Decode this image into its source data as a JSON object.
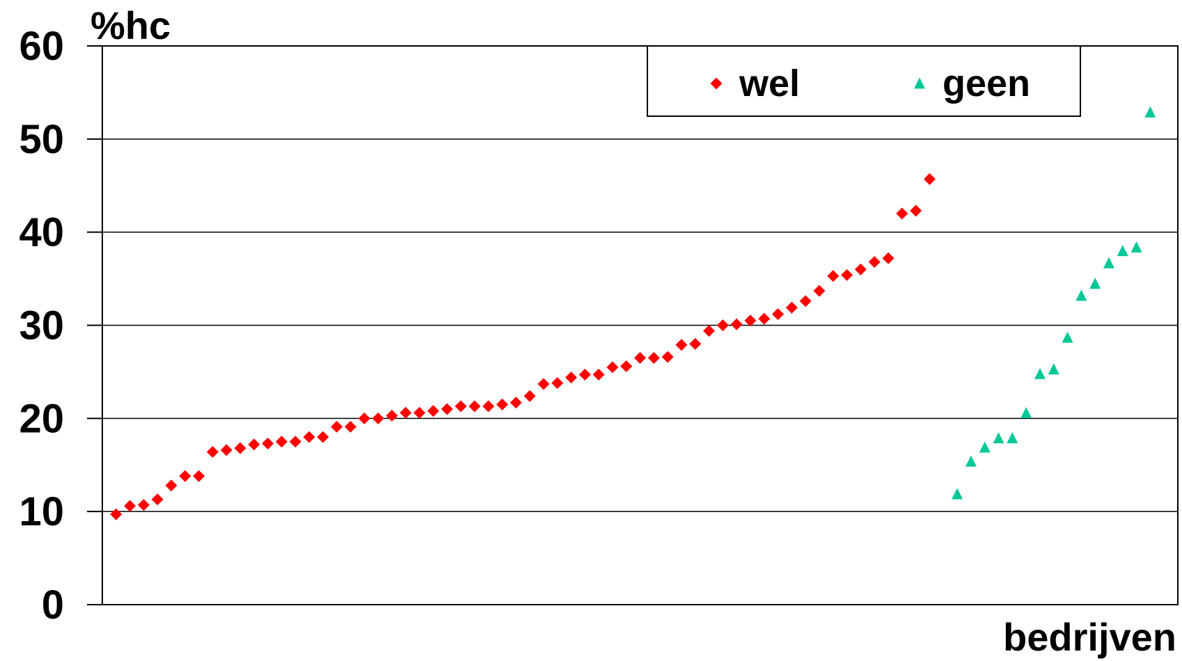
{
  "chart_data": {
    "type": "scatter",
    "title": "",
    "ylabel": "%hc",
    "xlabel": "bedrijven",
    "ylim": [
      0,
      60
    ],
    "yticks": [
      0,
      10,
      20,
      30,
      40,
      50,
      60
    ],
    "grid": "horizontal",
    "legend_position": "top-right",
    "series": [
      {
        "name": "wel",
        "marker": "diamond",
        "color": "#ff0000",
        "x": [
          1,
          2,
          3,
          4,
          5,
          6,
          7,
          8,
          9,
          10,
          11,
          12,
          13,
          14,
          15,
          16,
          17,
          18,
          19,
          20,
          21,
          22,
          23,
          24,
          25,
          26,
          27,
          28,
          29,
          30,
          31,
          32,
          33,
          34,
          35,
          36,
          37,
          38,
          39,
          40,
          41,
          42,
          43,
          44,
          45,
          46,
          47,
          48,
          49,
          50,
          51,
          52,
          53,
          54,
          55,
          56,
          57,
          58,
          59,
          60,
          61
        ],
        "y": [
          9.7,
          10.6,
          10.7,
          11.3,
          12.8,
          13.8,
          13.8,
          16.4,
          16.6,
          16.8,
          17.2,
          17.3,
          17.5,
          17.5,
          18.0,
          18.0,
          19.1,
          19.1,
          20.0,
          20.0,
          20.3,
          20.6,
          20.6,
          20.8,
          21.0,
          21.3,
          21.3,
          21.3,
          21.5,
          21.7,
          22.4,
          23.7,
          23.8,
          24.4,
          24.7,
          24.7,
          25.5,
          25.6,
          26.5,
          26.5,
          26.6,
          27.9,
          28.0,
          29.4,
          30.0,
          30.1,
          30.5,
          30.7,
          31.2,
          31.9,
          32.6,
          33.7,
          35.3,
          35.4,
          36.0,
          36.8,
          37.2,
          42.0,
          42.3,
          45.7,
          null
        ]
      },
      {
        "name": "geen",
        "marker": "triangle",
        "color": "#00c896",
        "x": [
          62,
          63,
          64,
          65,
          66,
          67,
          68,
          69,
          70,
          71,
          72,
          73,
          74,
          75,
          76,
          77
        ],
        "y": [
          11.8,
          15.3,
          16.8,
          17.8,
          17.8,
          20.5,
          24.7,
          25.2,
          28.6,
          33.1,
          34.4,
          36.6,
          37.9,
          38.3,
          52.8,
          null
        ]
      }
    ]
  }
}
